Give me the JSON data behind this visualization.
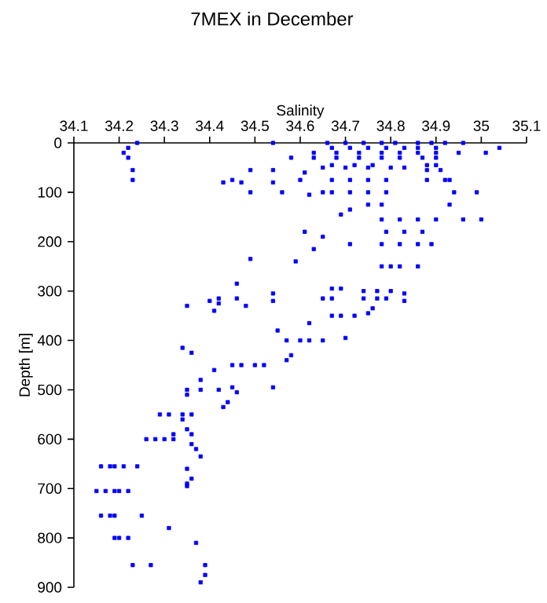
{
  "chart_data": {
    "type": "scatter",
    "title": "7MEX in December",
    "xlabel": "Salinity",
    "ylabel": "Depth [m]",
    "color": "#0000ff",
    "marker": "square",
    "xlim": [
      34.1,
      35.1
    ],
    "ylim": [
      900,
      0
    ],
    "xticks": [
      34.1,
      34.2,
      34.3,
      34.4,
      34.5,
      34.6,
      34.7,
      34.8,
      34.9,
      35,
      35.1
    ],
    "yticks": [
      0,
      100,
      200,
      300,
      400,
      500,
      600,
      700,
      800,
      900
    ],
    "x": [
      34.24,
      34.22,
      34.21,
      34.22,
      34.23,
      34.23,
      34.54,
      34.58,
      34.43,
      34.45,
      34.47,
      34.49,
      34.54,
      34.49,
      34.54,
      34.56,
      34.6,
      34.61,
      34.62,
      34.65,
      34.66,
      34.7,
      34.74,
      34.78,
      34.81,
      34.67,
      34.71,
      34.75,
      34.79,
      34.83,
      34.63,
      34.68,
      34.73,
      34.78,
      34.82,
      34.63,
      34.68,
      34.73,
      34.78,
      34.82,
      34.67,
      34.72,
      34.76,
      34.65,
      34.7,
      34.75,
      34.8,
      34.83,
      34.67,
      34.71,
      34.75,
      34.79,
      34.67,
      34.71,
      34.75,
      34.79,
      34.86,
      34.89,
      34.92,
      34.86,
      34.9,
      34.86,
      34.9,
      34.87,
      34.9,
      34.88,
      34.9,
      34.88,
      34.91,
      34.88,
      34.92,
      34.96,
      35.04,
      35.01,
      34.95,
      34.93,
      34.99,
      34.94,
      35,
      34.96,
      34.93,
      34.78,
      34.82,
      34.86,
      34.9,
      34.61,
      34.65,
      34.63,
      34.71,
      34.78,
      34.82,
      34.86,
      34.89,
      34.79,
      34.83,
      34.87,
      34.78,
      34.8,
      34.82,
      34.86,
      34.49,
      34.59,
      34.46,
      34.69,
      34.74,
      34.77,
      34.79,
      34.42,
      34.54,
      34.67,
      34.83,
      34.71,
      34.69,
      34.75,
      34.78,
      34.35,
      34.4,
      34.42,
      34.46,
      34.48,
      34.41,
      34.54,
      34.65,
      34.67,
      34.67,
      34.69,
      34.72,
      34.75,
      34.76,
      34.83,
      34.74,
      34.77,
      34.8,
      34.62,
      34.55,
      34.57,
      34.6,
      34.62,
      34.65,
      34.7,
      34.58,
      34.57,
      34.45,
      34.47,
      34.5,
      34.52,
      34.41,
      34.38,
      34.34,
      34.36,
      34.35,
      34.38,
      34.42,
      34.35,
      34.45,
      34.46,
      34.54,
      34.44,
      34.43,
      34.29,
      34.31,
      34.34,
      34.36,
      34.34,
      34.35,
      34.32,
      34.36,
      34.26,
      34.28,
      34.3,
      34.32,
      34.36,
      34.37,
      34.38,
      34.16,
      34.18,
      34.19,
      34.21,
      34.24,
      34.35,
      34.36,
      34.35,
      34.35,
      34.15,
      34.17,
      34.19,
      34.2,
      34.22,
      34.16,
      34.18,
      34.19,
      34.25,
      34.31,
      34.19,
      34.2,
      34.22,
      34.37,
      34.23,
      34.27,
      34.39,
      34.39,
      34.38
    ],
    "values": [
      0,
      10,
      20,
      30,
      55,
      75,
      0,
      30,
      80,
      75,
      80,
      55,
      55,
      100,
      80,
      100,
      75,
      60,
      105,
      100,
      0,
      0,
      0,
      0,
      0,
      10,
      10,
      10,
      10,
      10,
      20,
      20,
      20,
      20,
      20,
      30,
      30,
      30,
      30,
      30,
      45,
      45,
      45,
      50,
      50,
      50,
      50,
      50,
      75,
      75,
      75,
      75,
      100,
      100,
      100,
      100,
      0,
      0,
      0,
      10,
      10,
      20,
      20,
      30,
      30,
      45,
      45,
      55,
      55,
      75,
      75,
      0,
      10,
      20,
      20,
      75,
      100,
      100,
      155,
      155,
      125,
      155,
      155,
      155,
      155,
      180,
      190,
      215,
      205,
      205,
      205,
      205,
      205,
      180,
      180,
      180,
      250,
      250,
      250,
      250,
      235,
      240,
      285,
      295,
      315,
      315,
      315,
      325,
      320,
      315,
      320,
      135,
      145,
      125,
      125,
      330,
      320,
      315,
      315,
      330,
      340,
      305,
      315,
      295,
      350,
      350,
      350,
      345,
      335,
      305,
      300,
      300,
      300,
      365,
      380,
      400,
      400,
      400,
      400,
      395,
      430,
      440,
      450,
      450,
      450,
      450,
      460,
      480,
      415,
      425,
      500,
      500,
      500,
      510,
      495,
      505,
      495,
      525,
      535,
      550,
      550,
      550,
      550,
      560,
      580,
      590,
      590,
      600,
      600,
      600,
      600,
      610,
      620,
      635,
      655,
      655,
      655,
      655,
      655,
      660,
      680,
      690,
      695,
      705,
      705,
      705,
      705,
      705,
      755,
      755,
      755,
      755,
      780,
      800,
      800,
      800,
      810,
      855,
      855,
      855,
      875,
      890
    ]
  }
}
